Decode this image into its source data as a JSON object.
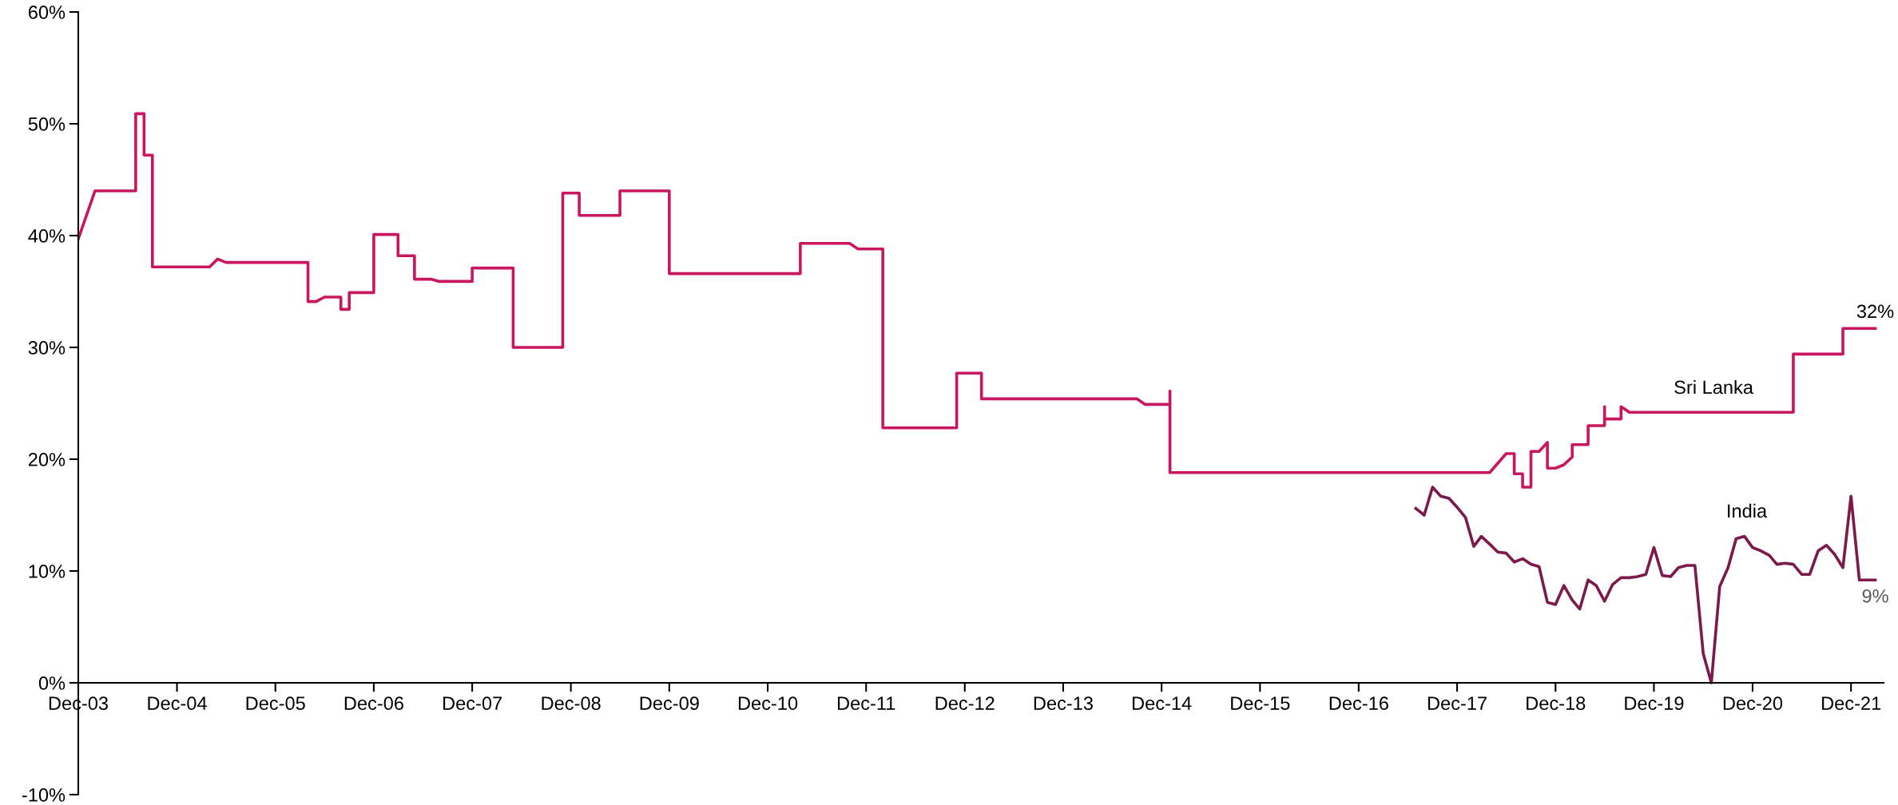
{
  "chart_data": {
    "type": "line",
    "ylim": [
      -10,
      60
    ],
    "yticks": [
      {
        "value": -10,
        "label": "-10%"
      },
      {
        "value": 0,
        "label": "0%"
      },
      {
        "value": 10,
        "label": "10%"
      },
      {
        "value": 20,
        "label": "20%"
      },
      {
        "value": 30,
        "label": "30%"
      },
      {
        "value": 40,
        "label": "40%"
      },
      {
        "value": 50,
        "label": "50%"
      },
      {
        "value": 60,
        "label": "60%"
      }
    ],
    "xlim": [
      "2003-12",
      "2022-04"
    ],
    "xticks": [
      {
        "value": "2003-12",
        "label": "Dec-03"
      },
      {
        "value": "2004-12",
        "label": "Dec-04"
      },
      {
        "value": "2005-12",
        "label": "Dec-05"
      },
      {
        "value": "2006-12",
        "label": "Dec-06"
      },
      {
        "value": "2007-12",
        "label": "Dec-07"
      },
      {
        "value": "2008-12",
        "label": "Dec-08"
      },
      {
        "value": "2009-12",
        "label": "Dec-09"
      },
      {
        "value": "2010-12",
        "label": "Dec-10"
      },
      {
        "value": "2011-12",
        "label": "Dec-11"
      },
      {
        "value": "2012-12",
        "label": "Dec-12"
      },
      {
        "value": "2013-12",
        "label": "Dec-13"
      },
      {
        "value": "2014-12",
        "label": "Dec-14"
      },
      {
        "value": "2015-12",
        "label": "Dec-15"
      },
      {
        "value": "2016-12",
        "label": "Dec-16"
      },
      {
        "value": "2017-12",
        "label": "Dec-17"
      },
      {
        "value": "2018-12",
        "label": "Dec-18"
      },
      {
        "value": "2019-12",
        "label": "Dec-19"
      },
      {
        "value": "2020-12",
        "label": "Dec-20"
      },
      {
        "value": "2021-12",
        "label": "Dec-21"
      }
    ],
    "grid": false,
    "legend": false,
    "marker": "none",
    "line_style": "solid",
    "series": [
      {
        "name": "Sri Lanka",
        "color": "#c8175e",
        "x": [
          "2003-12",
          "2004-02",
          "2004-07",
          "2004-07",
          "2004-08",
          "2004-08",
          "2004-09",
          "2004-09",
          "2005-04",
          "2005-05",
          "2005-06",
          "2006-04",
          "2006-04",
          "2006-05",
          "2006-06",
          "2006-08",
          "2006-08",
          "2006-09",
          "2006-09",
          "2006-12",
          "2006-12",
          "2007-03",
          "2007-03",
          "2007-05",
          "2007-05",
          "2007-07",
          "2007-08",
          "2007-12",
          "2007-12",
          "2008-05",
          "2008-05",
          "2008-11",
          "2008-11",
          "2009-01",
          "2009-01",
          "2009-06",
          "2009-06",
          "2009-12",
          "2009-12",
          "2011-04",
          "2011-04",
          "2011-10",
          "2011-11",
          "2012-02",
          "2012-02",
          "2012-11",
          "2012-11",
          "2013-02",
          "2013-02",
          "2014-09",
          "2014-10",
          "2015-01",
          "2015-01",
          "2015-01",
          "2018-04",
          "2018-06",
          "2018-07",
          "2018-07",
          "2018-08",
          "2018-08",
          "2018-09",
          "2018-09",
          "2018-10",
          "2018-11",
          "2018-11",
          "2018-12",
          "2019-01",
          "2019-02",
          "2019-02",
          "2019-04",
          "2019-04",
          "2019-06",
          "2019-06",
          "2019-06",
          "2019-08",
          "2019-08",
          "2019-09",
          "2021-05",
          "2021-05",
          "2021-11",
          "2021-11",
          "2022-03"
        ],
        "values": [
          39.7,
          44.0,
          44.0,
          50.9,
          50.9,
          47.2,
          47.2,
          37.2,
          37.2,
          37.9,
          37.6,
          37.6,
          34.1,
          34.1,
          34.5,
          34.5,
          33.4,
          33.4,
          34.9,
          34.9,
          40.1,
          40.1,
          38.2,
          38.2,
          36.1,
          36.1,
          35.9,
          35.9,
          37.1,
          37.1,
          30.0,
          30.0,
          43.8,
          43.8,
          41.8,
          41.8,
          44.0,
          44.0,
          36.6,
          36.6,
          39.3,
          39.3,
          38.8,
          38.8,
          22.8,
          22.8,
          27.7,
          27.7,
          25.4,
          25.4,
          24.9,
          24.9,
          26.1,
          18.8,
          18.8,
          20.5,
          20.5,
          18.7,
          18.7,
          17.5,
          17.5,
          20.7,
          20.7,
          21.5,
          19.2,
          19.2,
          19.5,
          20.2,
          21.3,
          21.3,
          23.0,
          23.0,
          24.7,
          23.6,
          23.6,
          24.7,
          24.2,
          24.2,
          29.4,
          29.4,
          31.7,
          31.7
        ]
      },
      {
        "name": "India",
        "color": "#7b1a4b",
        "x": [
          "2017-07",
          "2017-08",
          "2017-09",
          "2017-10",
          "2017-11",
          "2017-12",
          "2018-01",
          "2018-02",
          "2018-03",
          "2018-04",
          "2018-05",
          "2018-06",
          "2018-07",
          "2018-08",
          "2018-09",
          "2018-10",
          "2018-11",
          "2018-12",
          "2019-01",
          "2019-02",
          "2019-03",
          "2019-04",
          "2019-05",
          "2019-06",
          "2019-07",
          "2019-08",
          "2019-09",
          "2019-10",
          "2019-11",
          "2019-12",
          "2020-01",
          "2020-02",
          "2020-03",
          "2020-04",
          "2020-05",
          "2020-06",
          "2020-07",
          "2020-08",
          "2020-09",
          "2020-10",
          "2020-11",
          "2020-12",
          "2021-01",
          "2021-02",
          "2021-03",
          "2021-04",
          "2021-05",
          "2021-06",
          "2021-07",
          "2021-08",
          "2021-09",
          "2021-10",
          "2021-11",
          "2021-12",
          "2022-01",
          "2022-02",
          "2022-03"
        ],
        "values": [
          15.6,
          15.0,
          17.5,
          16.7,
          16.5,
          15.7,
          14.8,
          12.2,
          13.1,
          12.4,
          11.7,
          11.6,
          10.8,
          11.1,
          10.6,
          10.4,
          7.2,
          7.0,
          8.7,
          7.4,
          6.6,
          9.2,
          8.7,
          7.3,
          8.8,
          9.4,
          9.4,
          9.5,
          9.7,
          12.1,
          9.6,
          9.5,
          10.3,
          10.5,
          10.5,
          2.6,
          0.0,
          8.6,
          10.3,
          12.9,
          13.1,
          12.1,
          11.8,
          11.4,
          10.6,
          10.7,
          10.6,
          9.7,
          9.7,
          11.8,
          12.3,
          11.5,
          10.3,
          16.7,
          9.2,
          9.2,
          9.2
        ]
      }
    ],
    "annotations": [
      {
        "text": "32%",
        "x": "2022-03",
        "y": 31.7
      },
      {
        "text": "9%",
        "x": "2022-03",
        "y": 9.2
      }
    ]
  }
}
